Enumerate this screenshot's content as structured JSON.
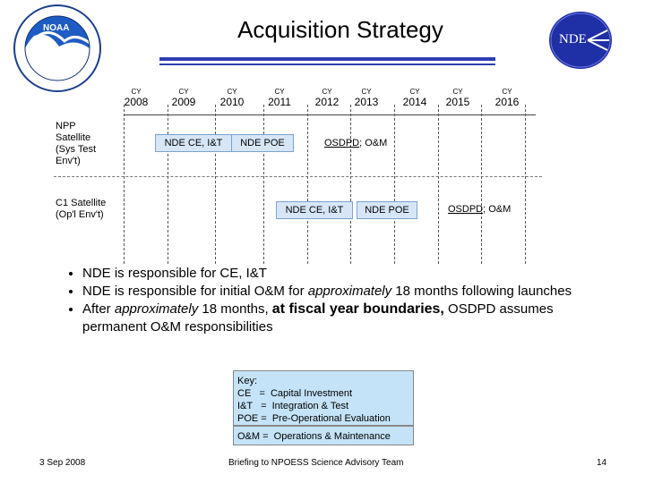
{
  "title": "Acquisition Strategy",
  "nde_logo_text": "NDE",
  "years": [
    {
      "cy": "CY",
      "year": "2008"
    },
    {
      "cy": "CY",
      "year": "2009"
    },
    {
      "cy": "CY",
      "year": "2010"
    },
    {
      "cy": "CY",
      "year": "2011"
    },
    {
      "cy": "CY",
      "year": "2012"
    },
    {
      "cy": "CY",
      "year": "2013"
    },
    {
      "cy": "CY",
      "year": "2014"
    },
    {
      "cy": "CY",
      "year": "2015"
    },
    {
      "cy": "CY",
      "year": "2016"
    }
  ],
  "rows": {
    "npp": {
      "label_lines": [
        "NPP",
        "Satellite",
        "(Sys Test",
        "Env't)"
      ],
      "phase1": "NDE CE, I&T",
      "phase2": "NDE POE",
      "phase3_org": "OSDPD",
      "phase3_rest": "; O&M"
    },
    "c1": {
      "label_lines": [
        "C1 Satellite",
        "(Op'l Env't)"
      ],
      "phase1": "NDE CE, I&T",
      "phase2": "NDE POE",
      "phase3_org": "OSDPD",
      "phase3_rest": "; O&M"
    }
  },
  "bullets": {
    "b1": "NDE is responsible for CE, I&T",
    "b2_pre": "NDE is responsible for initial O&M for ",
    "b2_em": "approximately",
    "b2_post": " 18 months following launches",
    "b3_pre": "After ",
    "b3_em": "approximately",
    "b3_mid": " 18 months, ",
    "b3_strong": "at fiscal year boundaries,",
    "b3_post": " OSDPD assumes permanent O&M responsibilities"
  },
  "key": {
    "heading": "Key:",
    "lines": [
      "CE   =  Capital Investment",
      "I&T   =  Integration & Test",
      "POE =  Pre-Operational Evaluation"
    ],
    "om": "O&M =  Operations & Maintenance"
  },
  "footer": {
    "date": "3 Sep 2008",
    "center": "Briefing to NPOESS Science Advisory Team",
    "page": "14"
  }
}
